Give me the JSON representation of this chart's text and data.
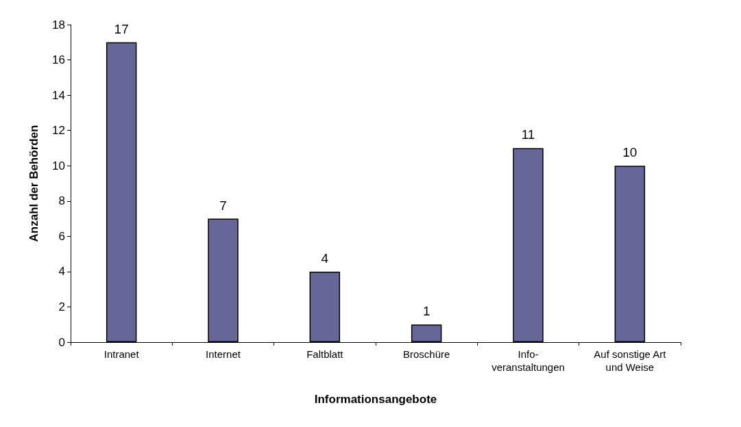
{
  "chart_data": {
    "type": "bar",
    "xlabel": "Informationsangebote",
    "ylabel": "Anzahl der Behörden",
    "categories": [
      "Intranet",
      "Internet",
      "Faltblatt",
      "Broschüre",
      "Info-\nveranstaltungen",
      "Auf sonstige Art\nund Weise"
    ],
    "values": [
      17,
      7,
      4,
      1,
      11,
      10
    ],
    "color": "#666699",
    "data_labels": true,
    "ylim": [
      0,
      18
    ],
    "yticks": [
      0,
      2,
      4,
      6,
      8,
      10,
      12,
      14,
      16,
      18
    ],
    "grid": false
  }
}
